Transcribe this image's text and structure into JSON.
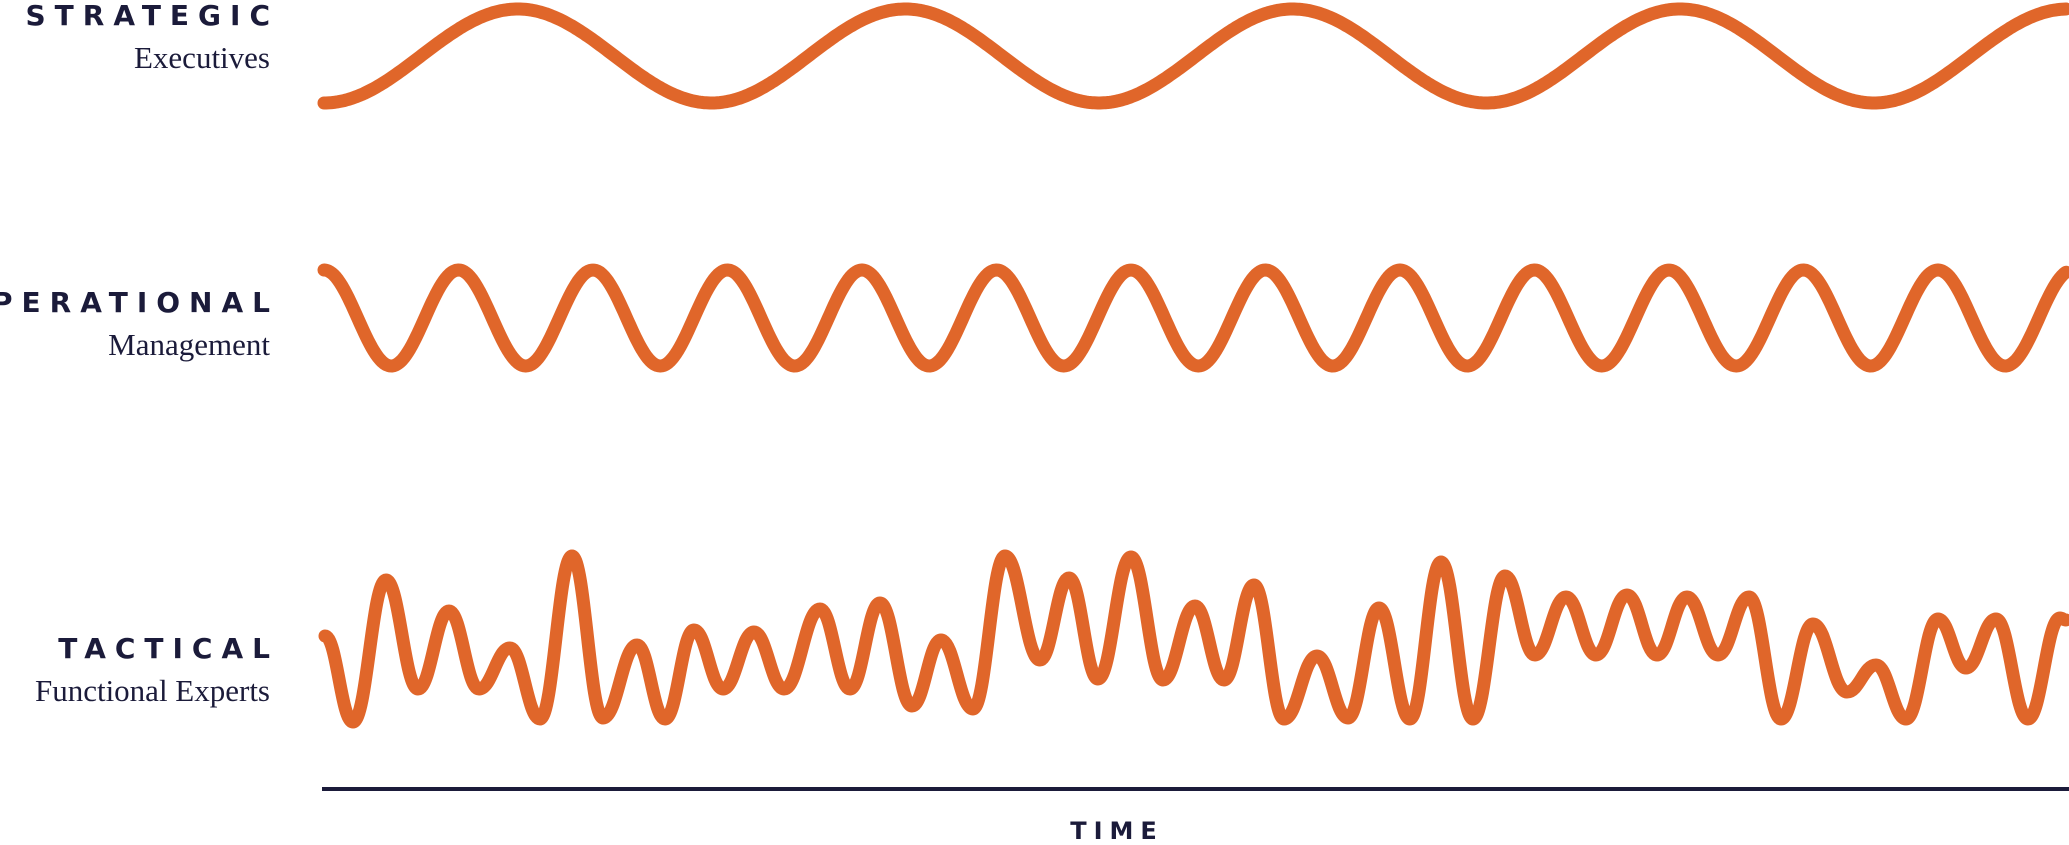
{
  "colors": {
    "wave": "#E0662A",
    "text": "#1B1B3A",
    "axis": "#1B1B3A"
  },
  "levels": [
    {
      "title": "STRATEGIC",
      "subtitle": "Executives"
    },
    {
      "title": "OPERATIONAL",
      "subtitle": "Management"
    },
    {
      "title": "TACTICAL",
      "subtitle": "Functional Experts"
    }
  ],
  "axis": {
    "label": "TIME"
  }
}
